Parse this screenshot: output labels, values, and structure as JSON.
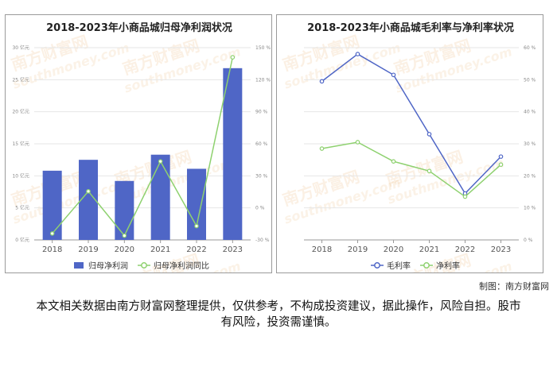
{
  "watermark": {
    "brand": "南方财富网",
    "domain": "southmoney.com"
  },
  "credit": "制图：南方财富网",
  "disclaimer": "本文相关数据由南方财富网整理提供，仅供参考，不构成投资建议，据此操作，风险自担。股市有风险，投资需谨慎。",
  "chart_data": [
    {
      "type": "bar",
      "title": "2018-2023年小商品城归母净利润状况",
      "categories": [
        "2018",
        "2019",
        "2020",
        "2021",
        "2022",
        "2023"
      ],
      "left_axis": {
        "range": [
          0,
          30
        ],
        "ticks": [
          "0 亿元",
          "5 亿元",
          "10 亿元",
          "15 亿元",
          "20 亿元",
          "25 亿元",
          "30 亿元"
        ]
      },
      "right_axis": {
        "range": [
          -30,
          150
        ],
        "ticks": [
          "-30 %",
          "0 %",
          "30 %",
          "60 %",
          "90 %",
          "120 %",
          "150 %"
        ]
      },
      "series": [
        {
          "name": "归母净利润",
          "kind": "bar",
          "axis": "left",
          "color": "#4f66c6",
          "values": [
            10.8,
            12.5,
            9.2,
            13.3,
            11.1,
            26.8
          ]
        },
        {
          "name": "归母净利润同比",
          "kind": "line",
          "axis": "right",
          "color": "#8ed16f",
          "values": [
            -24,
            15.5,
            -26,
            43.5,
            -17,
            141
          ]
        }
      ],
      "legend": "bottom"
    },
    {
      "type": "line",
      "title": "2018-2023年小商品城毛利率与净利率状况",
      "categories": [
        "2018",
        "2019",
        "2020",
        "2021",
        "2022",
        "2023"
      ],
      "right_axis": {
        "range": [
          0,
          60
        ],
        "ticks": [
          "0 %",
          "10 %",
          "20 %",
          "30 %",
          "40 %",
          "50 %",
          "60 %"
        ]
      },
      "series": [
        {
          "name": "毛利率",
          "color": "#4f66c6",
          "values": [
            49.5,
            58,
            51.5,
            33,
            14.5,
            26
          ]
        },
        {
          "name": "净利率",
          "color": "#8ed16f",
          "values": [
            28.5,
            30.5,
            24.5,
            21.5,
            13.5,
            23.5
          ]
        }
      ],
      "legend": "bottom"
    }
  ]
}
